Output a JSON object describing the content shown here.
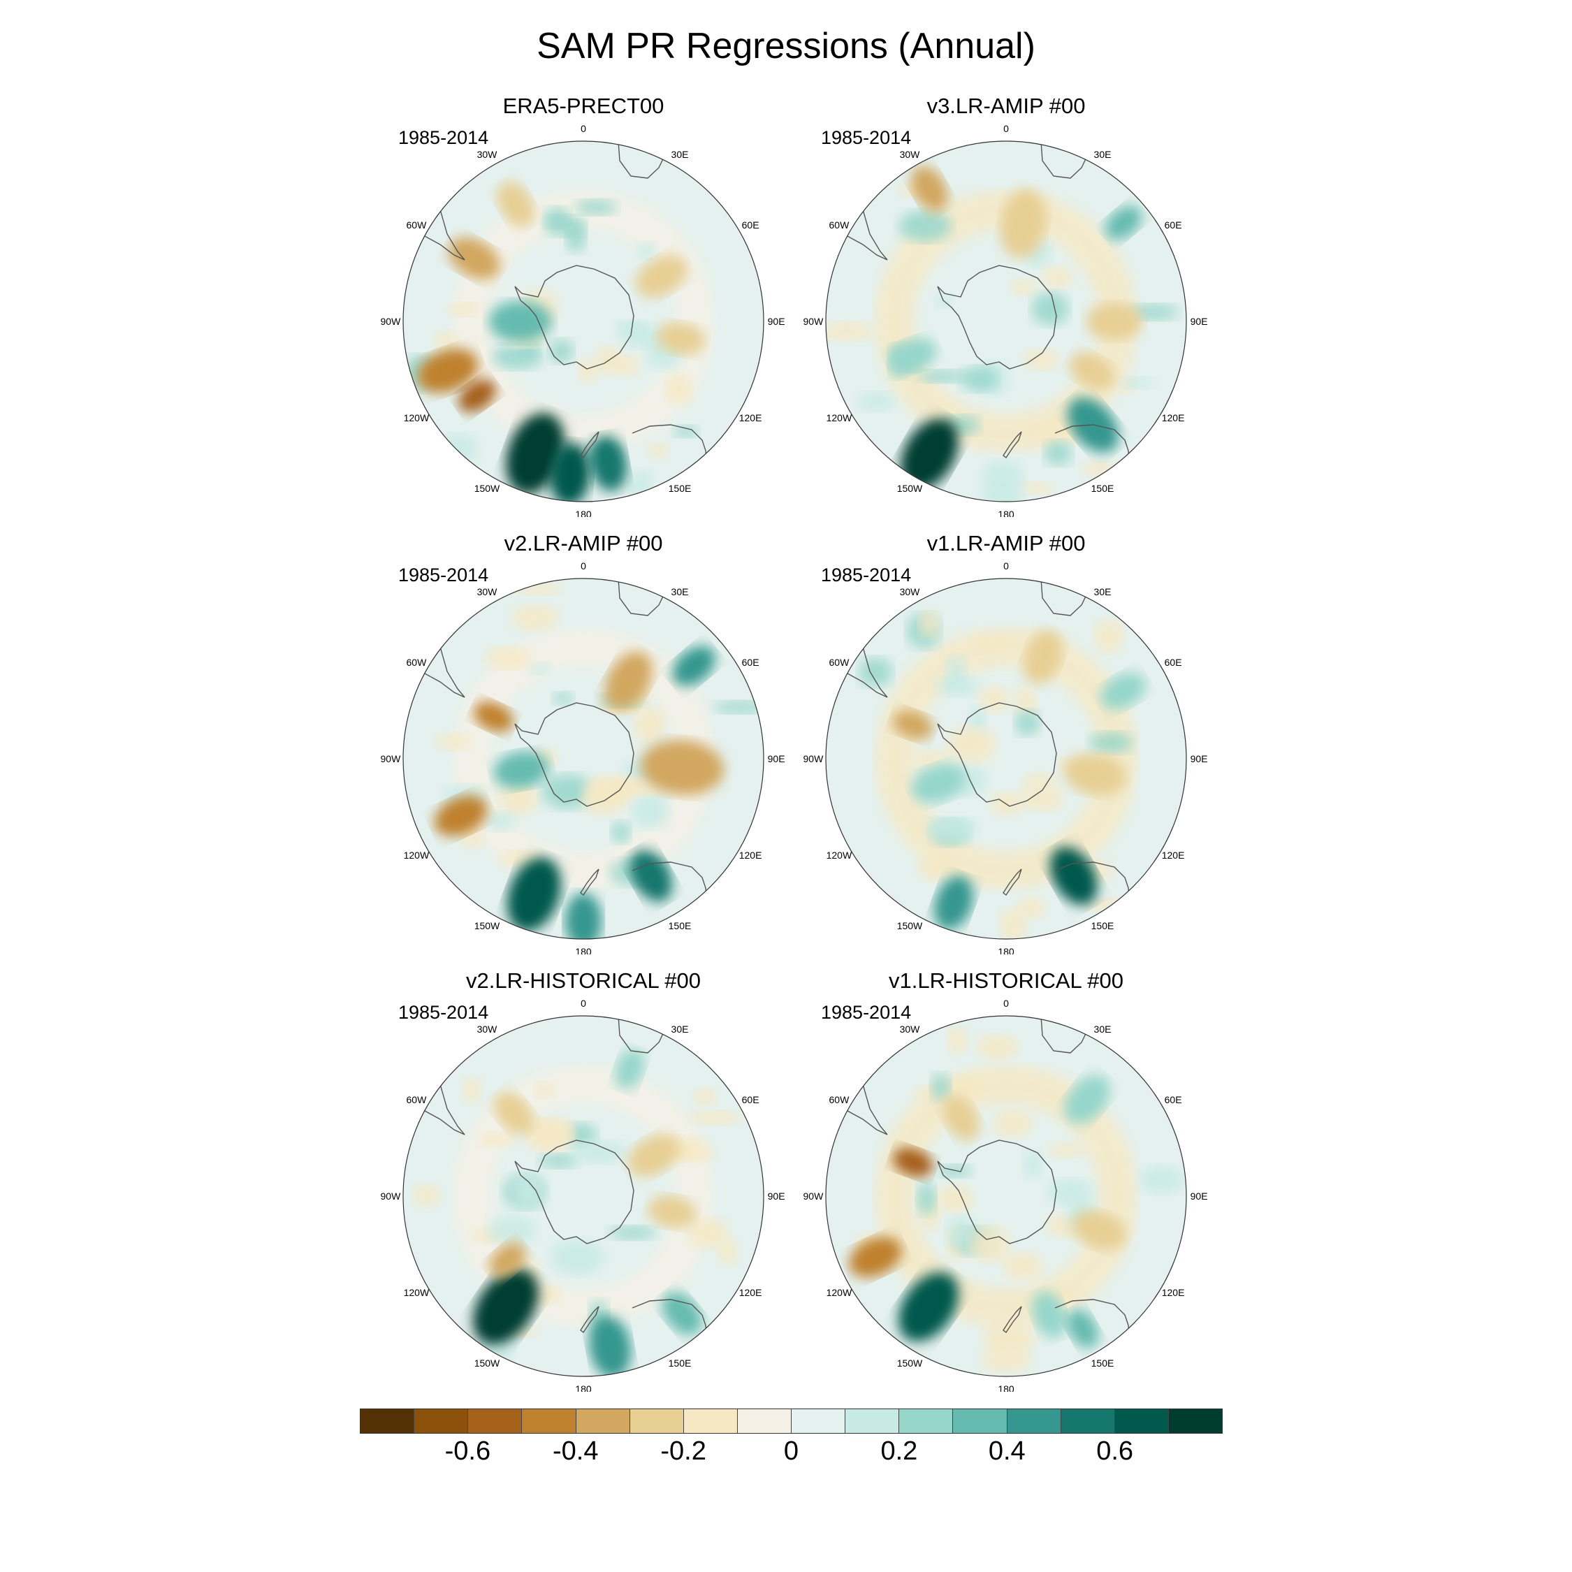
{
  "title": "SAM PR Regressions (Annual)",
  "panels": [
    {
      "id": "era5",
      "title": "ERA5-PRECT00",
      "period": "1985-2014"
    },
    {
      "id": "v3-amip",
      "title": "v3.LR-AMIP  #00",
      "period": "1985-2014"
    },
    {
      "id": "v2-amip",
      "title": "v2.LR-AMIP  #00",
      "period": "1985-2014"
    },
    {
      "id": "v1-amip",
      "title": "v1.LR-AMIP  #00",
      "period": "1985-2014"
    },
    {
      "id": "v2-hist",
      "title": "v2.LR-HISTORICAL  #00",
      "period": "1985-2014"
    },
    {
      "id": "v1-hist",
      "title": "v1.LR-HISTORICAL  #00",
      "period": "1985-2014"
    }
  ],
  "lon_labels": [
    {
      "text": "0",
      "deg": 0
    },
    {
      "text": "30E",
      "deg": 30
    },
    {
      "text": "60E",
      "deg": 60
    },
    {
      "text": "90E",
      "deg": 90
    },
    {
      "text": "120E",
      "deg": 120
    },
    {
      "text": "150E",
      "deg": 150
    },
    {
      "text": "180",
      "deg": 180
    },
    {
      "text": "150W",
      "deg": 210
    },
    {
      "text": "120W",
      "deg": 240
    },
    {
      "text": "90W",
      "deg": 270
    },
    {
      "text": "60W",
      "deg": 300
    },
    {
      "text": "30W",
      "deg": 330
    }
  ],
  "colorbar": {
    "colors": [
      "#543005",
      "#8c510a",
      "#a6611a",
      "#bf812d",
      "#d2a760",
      "#e7cf94",
      "#f6e8c3",
      "#f5f1e6",
      "#e5f1ee",
      "#c7eae5",
      "#96d6cb",
      "#66bbb0",
      "#35978f",
      "#16776e",
      "#01594e",
      "#003c30"
    ],
    "ticks": [
      "-0.6",
      "-0.4",
      "-0.2",
      "0",
      "0.2",
      "0.4",
      "0.6"
    ]
  }
}
